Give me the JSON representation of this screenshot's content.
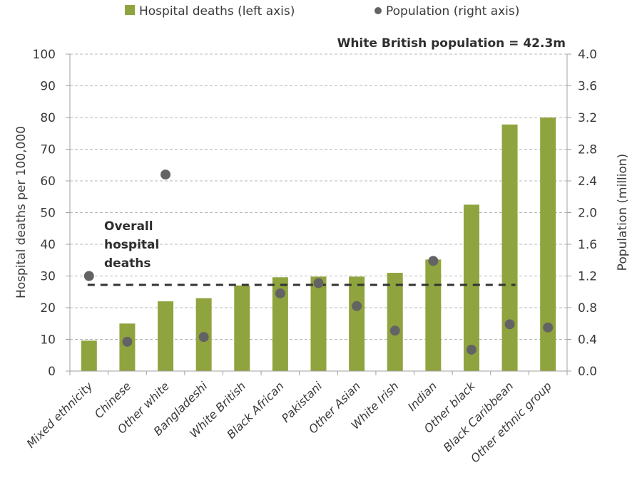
{
  "chart_data": {
    "type": "bar",
    "title": "",
    "categories": [
      "Mixed ethnicity",
      "Chinese",
      "Other white",
      "Bangladeshi",
      "White British",
      "Black African",
      "Pakistani",
      "Other Asian",
      "White Irish",
      "Indian",
      "Other black",
      "Black Caribbean",
      "Other ethnic group"
    ],
    "series": [
      {
        "name": "Hospital deaths (left axis)",
        "type": "bar",
        "axis": "left",
        "color": "#8fa43e",
        "values": [
          9.6,
          15.0,
          22.0,
          23.0,
          27.0,
          29.6,
          29.8,
          29.8,
          31.0,
          35.2,
          52.5,
          77.8,
          80.0
        ]
      },
      {
        "name": "Population (right axis)",
        "type": "scatter",
        "axis": "right",
        "color": "#636363",
        "values": [
          1.2,
          0.37,
          2.48,
          0.43,
          null,
          0.98,
          1.11,
          0.82,
          0.51,
          1.39,
          0.27,
          0.59,
          0.55
        ]
      }
    ],
    "ylabel": "Hospital deaths per 100,000",
    "ylim": [
      0,
      100
    ],
    "yticks": [
      "0",
      "10",
      "20",
      "30",
      "40",
      "50",
      "60",
      "70",
      "80",
      "90",
      "100"
    ],
    "y2label": "Population (million)",
    "y2lim": [
      0,
      4.0
    ],
    "y2ticks": [
      "0.0",
      "0.4",
      "0.8",
      "1.2",
      "1.6",
      "2.0",
      "2.4",
      "2.8",
      "3.2",
      "3.6",
      "4.0"
    ],
    "xlabel": "",
    "grid": true,
    "legend": "top-center",
    "reference_line": {
      "label_lines": [
        "Overall",
        "hospital",
        "deaths"
      ],
      "value": 27.2
    },
    "annotation": "White British population = 42.3m"
  }
}
